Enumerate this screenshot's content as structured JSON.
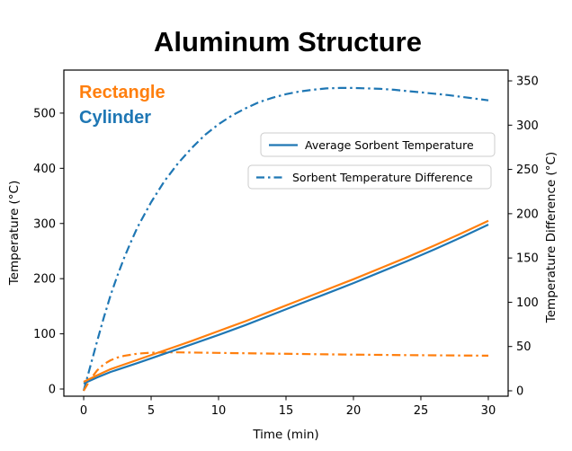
{
  "colors": {
    "blue": "#1f77b4",
    "orange": "#ff7f0e",
    "axis": "#000000",
    "legend_border": "#cccccc",
    "background": "#ffffff"
  },
  "chart_data": {
    "type": "line",
    "title": "Aluminum Structure",
    "xlabel": "Time (min)",
    "ylabel_left": "Temperature (°C)",
    "ylabel_right": "Temperature Difference (°C)",
    "x_ticks": [
      0,
      5,
      10,
      15,
      20,
      25,
      30
    ],
    "left_ticks": [
      0,
      100,
      200,
      300,
      400,
      500
    ],
    "right_ticks": [
      0,
      50,
      100,
      150,
      200,
      250,
      300,
      350
    ],
    "xlim": [
      -1.47,
      31.47
    ],
    "ylim_left": [
      -13,
      578
    ],
    "ylim_right": [
      -6.1,
      362.2
    ],
    "grid": false,
    "annotations": [
      {
        "text": "Rectangle",
        "color": "orange"
      },
      {
        "text": "Cylinder",
        "color": "blue"
      }
    ],
    "legend": {
      "position": "upper right area, two stacked boxes",
      "entries": [
        {
          "label": "Average Sorbent Temperature",
          "style": "solid"
        },
        {
          "label": "Sorbent Temperature Difference",
          "style": "dashdot"
        }
      ]
    },
    "series": [
      {
        "id": "cylinder-temperature-difference",
        "name": "Cylinder — Sorbent Temperature Difference",
        "axis": "right",
        "color": "blue",
        "style": "dashdot",
        "x": [
          0,
          0.5,
          1,
          1.5,
          2,
          2.5,
          3,
          3.5,
          4,
          5,
          6,
          7,
          8,
          9,
          10,
          11,
          12,
          13,
          14,
          15,
          16,
          17,
          18,
          19,
          20,
          21,
          22,
          23,
          24,
          25,
          26,
          27,
          28,
          29,
          30
        ],
        "y": [
          0,
          28,
          56,
          83,
          108,
          130,
          150,
          168,
          185,
          213,
          237,
          257,
          274,
          289,
          301,
          311,
          319,
          326,
          331,
          335,
          338,
          340,
          341.5,
          342,
          342,
          341.5,
          341,
          340,
          338.5,
          337,
          335.5,
          334,
          332,
          330,
          328
        ]
      },
      {
        "id": "rectangle-temperature-difference",
        "name": "Rectangle — Sorbent Temperature Difference",
        "axis": "right",
        "color": "orange",
        "style": "dashdot",
        "x": [
          0,
          0.5,
          1,
          1.5,
          2,
          2.5,
          3,
          4,
          5,
          6,
          7,
          8,
          9,
          10,
          12,
          14,
          16,
          18,
          20,
          22,
          24,
          26,
          28,
          30
        ],
        "y": [
          0,
          13,
          23,
          30,
          34.5,
          37.5,
          39.5,
          42,
          43,
          43.4,
          43.4,
          43.2,
          43,
          42.8,
          42.4,
          42,
          41.6,
          41.2,
          40.9,
          40.6,
          40.3,
          40.1,
          39.9,
          39.7
        ]
      },
      {
        "id": "cylinder-average-temperature",
        "name": "Cylinder — Average Sorbent Temperature",
        "axis": "left",
        "color": "blue",
        "style": "solid",
        "x": [
          0,
          1,
          2,
          4,
          6,
          8,
          10,
          12,
          14,
          16,
          18,
          20,
          22,
          24,
          26,
          28,
          30
        ],
        "y": [
          10,
          21,
          31,
          47,
          64,
          81,
          98,
          116,
          135,
          154,
          173,
          192,
          212,
          232,
          253,
          275,
          298
        ]
      },
      {
        "id": "rectangle-average-temperature",
        "name": "Rectangle — Average Sorbent Temperature",
        "axis": "left",
        "color": "orange",
        "style": "solid",
        "x": [
          0,
          1,
          2,
          4,
          6,
          8,
          10,
          12,
          14,
          16,
          18,
          20,
          22,
          24,
          26,
          28,
          30
        ],
        "y": [
          13,
          25,
          36,
          53,
          70,
          87,
          105,
          123,
          142,
          161,
          180,
          199,
          219,
          239,
          260,
          282,
          305
        ]
      }
    ]
  }
}
